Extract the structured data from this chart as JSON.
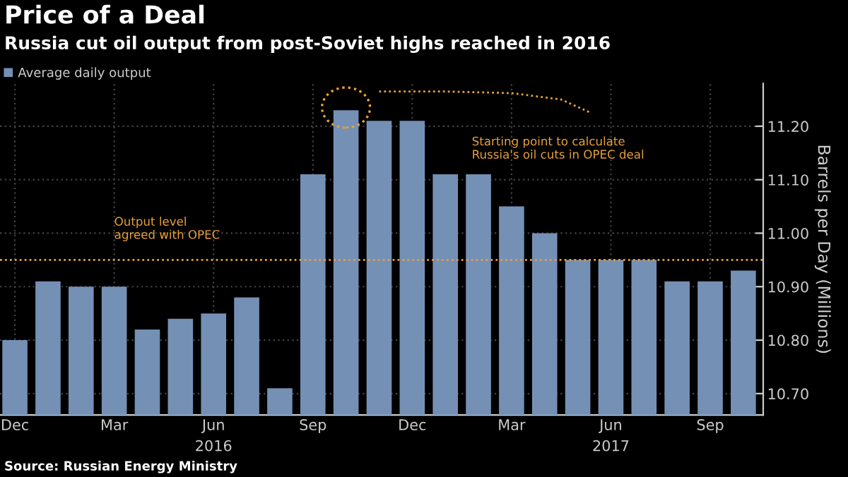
{
  "chart_data": {
    "type": "bar",
    "title": "Price of a Deal",
    "subtitle": "Russia cut oil output from post-Soviet highs reached in 2016",
    "categories": [
      "Dec",
      null,
      null,
      "Mar",
      null,
      null,
      "Jun",
      null,
      null,
      "Sep",
      null,
      null,
      "Dec",
      null,
      null,
      "Mar",
      null,
      null,
      "Jun",
      null,
      null,
      "Sep",
      null
    ],
    "series": [
      {
        "name": "Average daily output",
        "color": "#7590b5",
        "values": [
          10.8,
          10.91,
          10.9,
          10.9,
          10.82,
          10.84,
          10.85,
          10.88,
          10.71,
          11.11,
          11.23,
          11.21,
          11.21,
          11.11,
          11.11,
          11.05,
          11.0,
          10.95,
          10.95,
          10.95,
          10.91,
          10.91,
          10.93
        ]
      }
    ],
    "ylabel": "Barrels per Day (Millions)",
    "ylim": [
      10.66,
      11.28
    ],
    "yticks": [
      {
        "value": 10.7,
        "label": "10.70"
      },
      {
        "value": 10.8,
        "label": "10.80"
      },
      {
        "value": 10.9,
        "label": "10.90"
      },
      {
        "value": 11.0,
        "label": "11.00"
      },
      {
        "value": 11.1,
        "label": "11.10"
      },
      {
        "value": 11.2,
        "label": "11.20"
      }
    ],
    "ref_lines": [
      {
        "axis": "y",
        "value": 10.95,
        "label": "Output level\nagreed with OPEC",
        "color": "#e8a03a",
        "line_style": "dotted"
      }
    ],
    "annotations": [
      "Starting point to calculate\nRussia's oil cuts in OPEC deal",
      "2016",
      "2017",
      "Source: Russian Energy Ministry"
    ],
    "grid": true,
    "legend": "top left"
  }
}
